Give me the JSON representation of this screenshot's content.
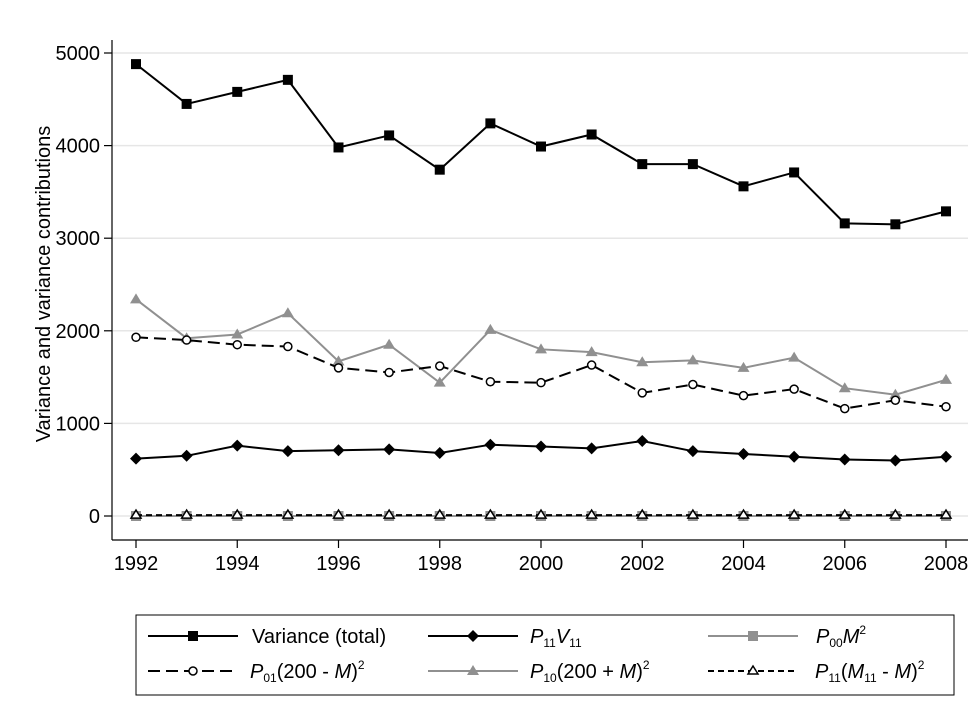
{
  "chart_data": {
    "type": "line",
    "title": "",
    "xlabel": "",
    "ylabel": "Variance and variance contributions",
    "x": [
      1992,
      1993,
      1994,
      1995,
      1996,
      1997,
      1998,
      1999,
      2000,
      2001,
      2002,
      2003,
      2004,
      2005,
      2006,
      2007,
      2008
    ],
    "xticks": [
      "1992",
      "1994",
      "1996",
      "1998",
      "2000",
      "2002",
      "2004",
      "2006",
      "2008"
    ],
    "yticks": [
      "0",
      "1000",
      "2000",
      "3000",
      "4000",
      "5000"
    ],
    "xlim": [
      1992,
      2008
    ],
    "ylim": [
      0,
      5000
    ],
    "grid": "horizontal",
    "legend_position": "bottom",
    "series": [
      {
        "name": "Variance (total)",
        "color": "#000000",
        "dash": "solid",
        "marker": "square-filled",
        "values": [
          4880,
          4450,
          4580,
          4710,
          3980,
          4110,
          3740,
          4240,
          3990,
          4120,
          3800,
          3800,
          3560,
          3710,
          3160,
          3150,
          3290
        ]
      },
      {
        "name": "P11V11",
        "color": "#000000",
        "dash": "solid",
        "marker": "diamond-filled",
        "values": [
          620,
          650,
          760,
          700,
          710,
          720,
          680,
          770,
          750,
          730,
          810,
          700,
          670,
          640,
          610,
          600,
          640
        ]
      },
      {
        "name": "P00M^2",
        "color": "#909090",
        "dash": "solid",
        "marker": "square-filled",
        "values": [
          0,
          0,
          0,
          0,
          0,
          0,
          0,
          0,
          0,
          0,
          0,
          0,
          0,
          0,
          0,
          0,
          0
        ]
      },
      {
        "name": "P01(200 - M)^2",
        "color": "#000000",
        "dash": "dashed",
        "marker": "circle-open",
        "values": [
          1930,
          1900,
          1850,
          1830,
          1600,
          1550,
          1620,
          1450,
          1440,
          1630,
          1330,
          1420,
          1300,
          1370,
          1160,
          1250,
          1180
        ]
      },
      {
        "name": "P10(200 + M)^2",
        "color": "#909090",
        "dash": "solid",
        "marker": "triangle-filled",
        "values": [
          2340,
          1920,
          1960,
          2190,
          1670,
          1850,
          1440,
          2010,
          1800,
          1770,
          1660,
          1680,
          1600,
          1710,
          1380,
          1310,
          1470
        ]
      },
      {
        "name": "P11(M11 - M)^2",
        "color": "#000000",
        "dash": "short-dashed",
        "marker": "triangle-open",
        "values": [
          10,
          10,
          10,
          10,
          10,
          10,
          10,
          10,
          10,
          10,
          10,
          10,
          10,
          10,
          10,
          10,
          10
        ]
      }
    ]
  }
}
